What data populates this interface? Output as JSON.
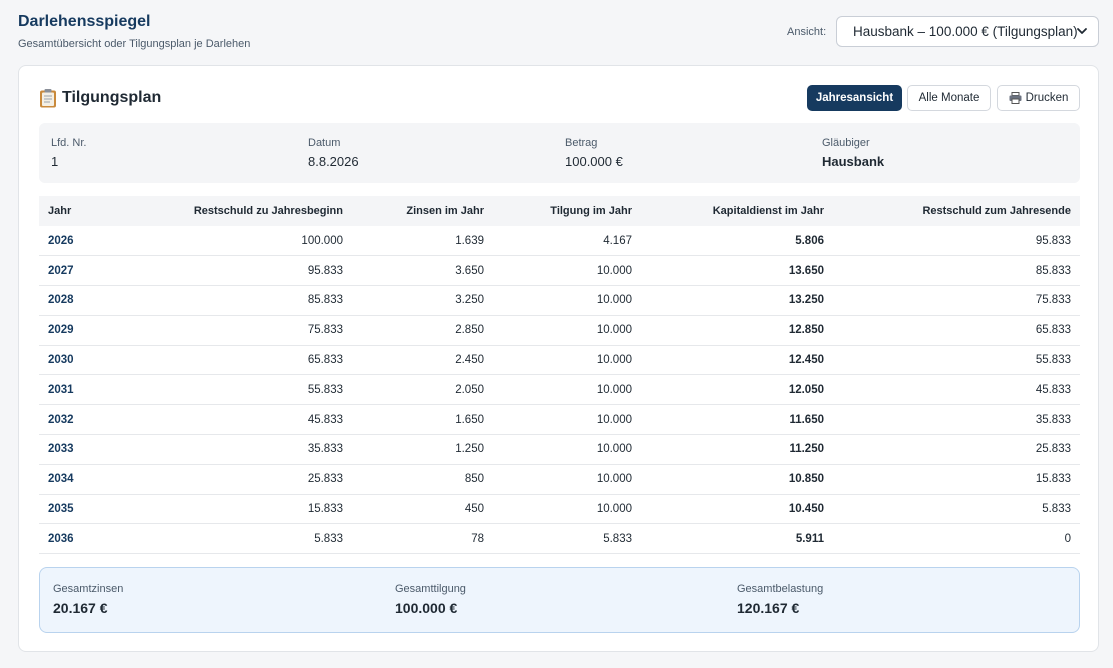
{
  "header": {
    "title": "Darlehensspiegel",
    "subtitle": "Gesamtübersicht oder Tilgungsplan je Darlehen",
    "view_label": "Ansicht:",
    "view_selected": "Hausbank – 100.000 € (Tilgungsplan)"
  },
  "card": {
    "title": "Tilgungsplan",
    "buttons": {
      "year_view": "Jahresansicht",
      "all_months": "Alle Monate",
      "print": "Drucken"
    }
  },
  "info": {
    "nr_label": "Lfd. Nr.",
    "nr_value": "1",
    "date_label": "Datum",
    "date_value": "8.8.2026",
    "amount_label": "Betrag",
    "amount_value": "100.000 €",
    "creditor_label": "Gläubiger",
    "creditor_value": "Hausbank"
  },
  "table": {
    "columns": [
      "Jahr",
      "Restschuld zu Jahresbeginn",
      "Zinsen im Jahr",
      "Tilgung im Jahr",
      "Kapitaldienst im Jahr",
      "Restschuld zum Jahresende"
    ],
    "rows": [
      [
        "2026",
        "100.000",
        "1.639",
        "4.167",
        "5.806",
        "95.833"
      ],
      [
        "2027",
        "95.833",
        "3.650",
        "10.000",
        "13.650",
        "85.833"
      ],
      [
        "2028",
        "85.833",
        "3.250",
        "10.000",
        "13.250",
        "75.833"
      ],
      [
        "2029",
        "75.833",
        "2.850",
        "10.000",
        "12.850",
        "65.833"
      ],
      [
        "2030",
        "65.833",
        "2.450",
        "10.000",
        "12.450",
        "55.833"
      ],
      [
        "2031",
        "55.833",
        "2.050",
        "10.000",
        "12.050",
        "45.833"
      ],
      [
        "2032",
        "45.833",
        "1.650",
        "10.000",
        "11.650",
        "35.833"
      ],
      [
        "2033",
        "35.833",
        "1.250",
        "10.000",
        "11.250",
        "25.833"
      ],
      [
        "2034",
        "25.833",
        "850",
        "10.000",
        "10.850",
        "15.833"
      ],
      [
        "2035",
        "15.833",
        "450",
        "10.000",
        "10.450",
        "5.833"
      ],
      [
        "2036",
        "5.833",
        "78",
        "5.833",
        "5.911",
        "0"
      ]
    ]
  },
  "summary": {
    "interest_label": "Gesamtzinsen",
    "interest_value": "20.167 €",
    "repayment_label": "Gesamttilgung",
    "repayment_value": "100.000 €",
    "total_label": "Gesamtbelastung",
    "total_value": "120.167 €"
  },
  "icons": {
    "title_icon": "clipboard-icon",
    "print_icon": "printer-icon",
    "select_icon": "chevron-down-icon"
  },
  "colors": {
    "accent": "#163a5f",
    "summary_bg": "#eef5fd",
    "summary_border": "#b9d3ee"
  }
}
